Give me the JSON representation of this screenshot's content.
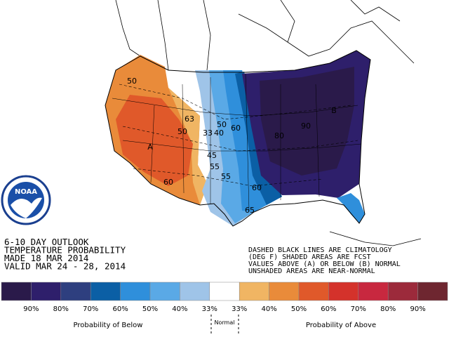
{
  "logo": "NOAA",
  "outlook": {
    "lines": [
      "6-10 DAY OUTLOOK",
      "TEMPERATURE PROBABILITY",
      "MADE  18 MAR 2014",
      "VALID  MAR 24 - 28, 2014"
    ]
  },
  "notes": {
    "lines": [
      "DASHED BLACK LINES ARE CLIMATOLOGY",
      "(DEG F) SHADED AREAS ARE FCST",
      "VALUES ABOVE (A) OR BELOW (B) NORMAL",
      "UNSHADED AREAS ARE NEAR-NORMAL"
    ]
  },
  "map": {
    "labels": [
      "50",
      "63",
      "50",
      "33",
      "40",
      "50",
      "60",
      "A",
      "45",
      "55",
      "55",
      "60",
      "60",
      "65",
      "80",
      "90",
      "B"
    ]
  },
  "legend": {
    "colors": [
      "#2a1a4a",
      "#2e1f6b",
      "#2e3f7f",
      "#0b5fa5",
      "#2f8fdb",
      "#5aa9e6",
      "#9fc4e8",
      "#ffffff",
      "#f0b563",
      "#e98b3a",
      "#e0592a",
      "#d4322b",
      "#c8283f",
      "#9c2a3b",
      "#6e2630"
    ],
    "labels": [
      "90%",
      "80%",
      "70%",
      "60%",
      "50%",
      "40%",
      "33%",
      "33%",
      "40%",
      "50%",
      "60%",
      "70%",
      "80%",
      "90%"
    ],
    "below": "Probability of Below",
    "normal": "Normal",
    "above": "Probability of Above"
  }
}
